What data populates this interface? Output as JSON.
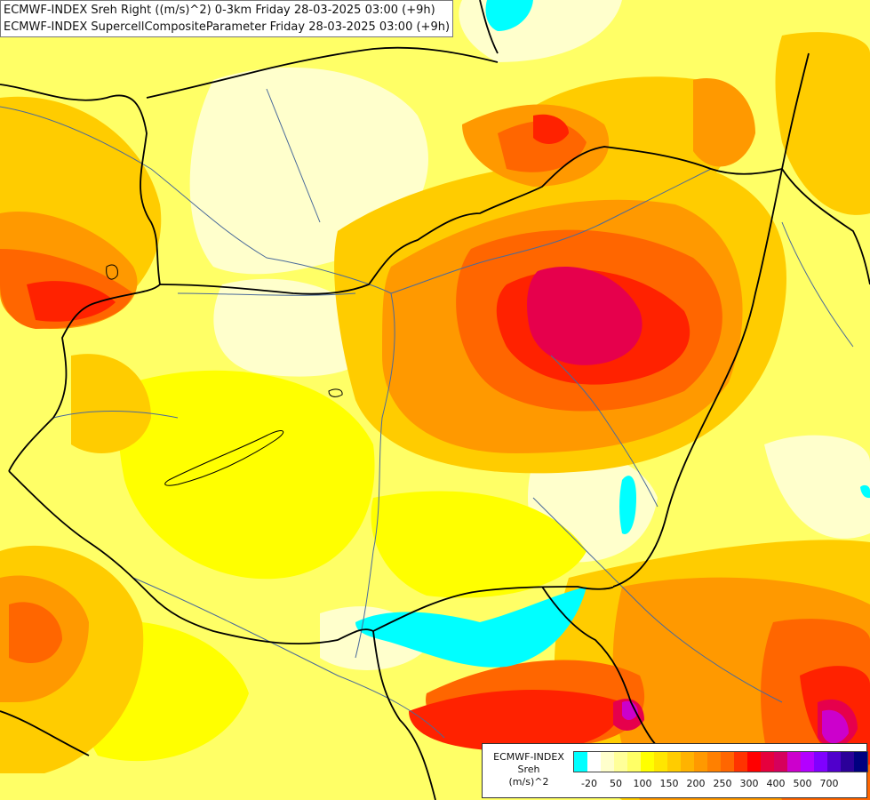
{
  "header": {
    "line1": "ECMWF-INDEX Sreh Right ((m/s)^2) 0-3km Friday 28-03-2025 03:00 (+9h)",
    "line2": "ECMWF-INDEX SupercellCompositeParameter Friday 28-03-2025 03:00 (+9h)"
  },
  "legend": {
    "title": "ECMWF-INDEX",
    "variable": "Sreh",
    "unit": "(m/s)^2",
    "colors": [
      "#00ffff",
      "#ffffff",
      "#ffffcc",
      "#ffff99",
      "#ffff66",
      "#ffff00",
      "#ffe600",
      "#ffcc00",
      "#ffb300",
      "#ff9900",
      "#ff8000",
      "#ff6600",
      "#ff3300",
      "#ff0000",
      "#e6003d",
      "#d6005c",
      "#cc00cc",
      "#b300ff",
      "#8000ff",
      "#5000cc",
      "#2b0099",
      "#000080"
    ],
    "labels": [
      "-20",
      "50",
      "100",
      "150",
      "200",
      "250",
      "300",
      "400",
      "500",
      "700"
    ]
  },
  "map": {
    "field_colors": {
      "background": "#ffff66",
      "pale": "#ffffcc",
      "yellow": "#ffff00",
      "gold": "#ffcc00",
      "orange": "#ff9900",
      "dark_orange": "#ff6600",
      "red": "#ff2200",
      "crimson": "#e6004c",
      "magenta": "#cc00cc",
      "cyan": "#00ffff",
      "border": "#000000",
      "river": "#4a6a9a"
    }
  }
}
